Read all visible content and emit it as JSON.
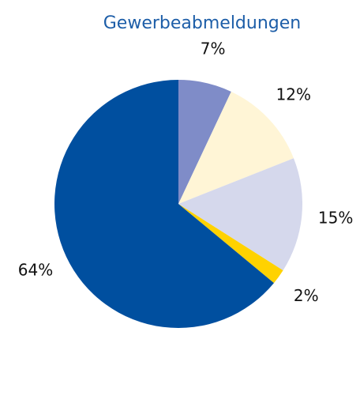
{
  "chart_data": {
    "type": "pie",
    "title": "Gewerbeabmeldungen",
    "values": [
      7,
      12,
      15,
      2,
      64
    ],
    "value_labels": [
      "7%",
      "12%",
      "15%",
      "2%",
      "64%"
    ],
    "colors": [
      "#7f8cc8",
      "#fff5d6",
      "#d5d8ec",
      "#ffd200",
      "#004f9f"
    ]
  }
}
